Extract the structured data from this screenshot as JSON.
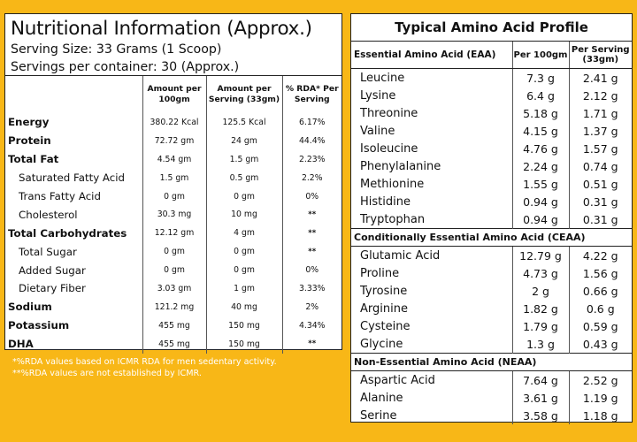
{
  "nutrition": {
    "title": "Nutritional Information (Approx.)",
    "serving_size": "Serving Size: 33 Grams (1 Scoop)",
    "servings_per_container": "Servings per container: 30 (Approx.)",
    "headers": {
      "col1": "",
      "col2_line1": "Amount per",
      "col2_line2": "100gm",
      "col3_line1": "Amount per",
      "col3_line2": "Serving (33gm)",
      "col4_line1": "% RDA* Per",
      "col4_line2": "Serving"
    },
    "rows": [
      {
        "label": "Energy",
        "per100": "380.22 Kcal",
        "serving": "125.5 Kcal",
        "rda": "6.17%"
      },
      {
        "label": "Protein",
        "per100": "72.72 gm",
        "serving": "24 gm",
        "rda": "44.4%"
      },
      {
        "label": "Total Fat",
        "per100": "4.54 gm",
        "serving": "1.5 gm",
        "rda": "2.23%"
      },
      {
        "label": "Saturated Fatty Acid",
        "per100": "1.5 gm",
        "serving": "0.5 gm",
        "rda": "2.2%"
      },
      {
        "label": "Trans Fatty Acid",
        "per100": "0 gm",
        "serving": "0 gm",
        "rda": "0%"
      },
      {
        "label": "Cholesterol",
        "per100": "30.3 mg",
        "serving": "10 mg",
        "rda": "**"
      },
      {
        "label": "Total Carbohydrates",
        "per100": "12.12 gm",
        "serving": "4 gm",
        "rda": "**"
      },
      {
        "label": "Total Sugar",
        "per100": "0 gm",
        "serving": "0 gm",
        "rda": "**"
      },
      {
        "label": "Added Sugar",
        "per100": "0 gm",
        "serving": "0 gm",
        "rda": "0%"
      },
      {
        "label": "Dietary Fiber",
        "per100": "3.03 gm",
        "serving": "1 gm",
        "rda": "3.33%"
      },
      {
        "label": "Sodium",
        "per100": "121.2 mg",
        "serving": "40 mg",
        "rda": "2%"
      },
      {
        "label": "Potassium",
        "per100": "455 mg",
        "serving": "150 mg",
        "rda": "4.34%"
      },
      {
        "label": "DHA",
        "per100": "455 mg",
        "serving": "150 mg",
        "rda": "**"
      }
    ]
  },
  "footnotes": {
    "line1": "*%RDA values based on ICMR RDA for men sedentary activity.",
    "line2": "**%RDA values are not established by ICMR."
  },
  "amino": {
    "title": "Typical Amino Acid Profile",
    "headers": {
      "col1": "Essential Amino Acid (EAA)",
      "col2": "Per 100gm",
      "col3_line1": "Per Serving",
      "col3_line2": "(33gm)"
    },
    "eaa": [
      {
        "name": "Leucine",
        "per100": "7.3 g",
        "serving": "2.41 g"
      },
      {
        "name": "Lysine",
        "per100": "6.4 g",
        "serving": "2.12 g"
      },
      {
        "name": "Threonine",
        "per100": "5.18 g",
        "serving": "1.71 g"
      },
      {
        "name": "Valine",
        "per100": "4.15 g",
        "serving": "1.37 g"
      },
      {
        "name": "Isoleucine",
        "per100": "4.76 g",
        "serving": "1.57 g"
      },
      {
        "name": "Phenylalanine",
        "per100": "2.24 g",
        "serving": "0.74 g"
      },
      {
        "name": "Methionine",
        "per100": "1.55 g",
        "serving": "0.51 g"
      },
      {
        "name": "Histidine",
        "per100": "0.94 g",
        "serving": "0.31 g"
      },
      {
        "name": "Tryptophan",
        "per100": "0.94 g",
        "serving": "0.31 g"
      }
    ],
    "ceaa_title": "Conditionally Essential Amino Acid (CEAA)",
    "ceaa": [
      {
        "name": "Glutamic Acid",
        "per100": "12.79 g",
        "serving": "4.22 g"
      },
      {
        "name": "Proline",
        "per100": "4.73 g",
        "serving": "1.56 g"
      },
      {
        "name": "Tyrosine",
        "per100": "2 g",
        "serving": "0.66 g"
      },
      {
        "name": "Arginine",
        "per100": "1.82 g",
        "serving": "0.6 g"
      },
      {
        "name": "Cysteine",
        "per100": "1.79 g",
        "serving": "0.59 g"
      },
      {
        "name": "Glycine",
        "per100": "1.3 g",
        "serving": "0.43 g"
      }
    ],
    "neaa_title": "Non-Essential Amino Acid (NEAA)",
    "neaa": [
      {
        "name": "Aspartic Acid",
        "per100": "7.64 g",
        "serving": "2.52 g"
      },
      {
        "name": "Alanine",
        "per100": "3.61 g",
        "serving": "1.19 g"
      },
      {
        "name": "Serine",
        "per100": "3.58 g",
        "serving": "1.18 g"
      }
    ]
  },
  "colors": {
    "background": "#f8b717",
    "panel": "#ffffff",
    "text": "#111111"
  }
}
